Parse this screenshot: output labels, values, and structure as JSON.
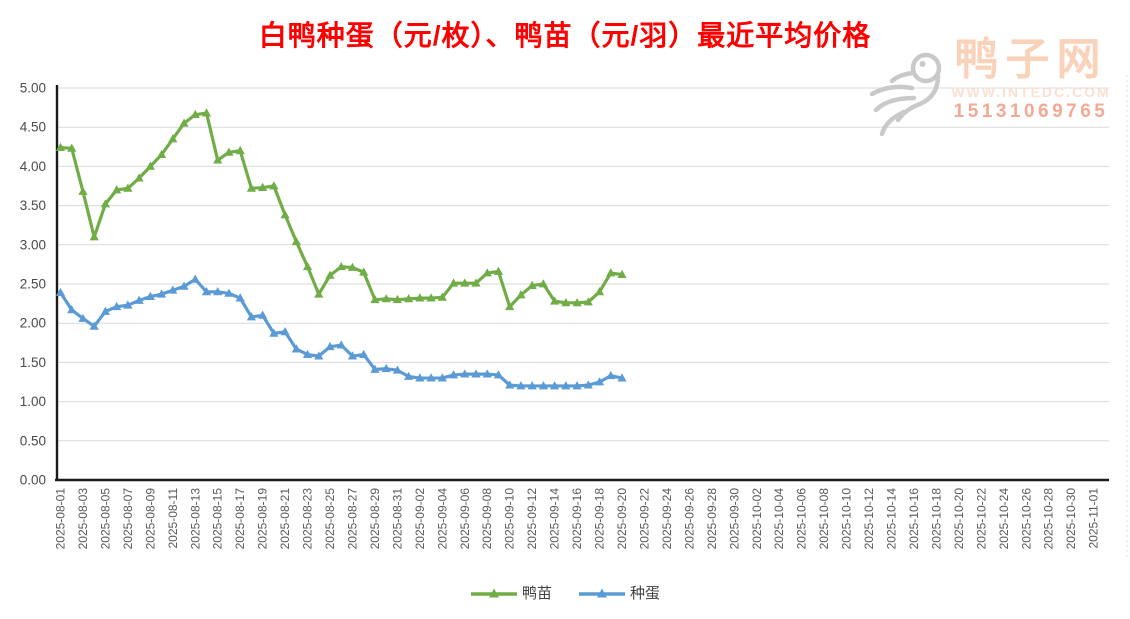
{
  "title": "白鸭种蛋（元/枚）、鸭苗（元/羽）最近平均价格",
  "watermark": {
    "logo": "duck-logo-icon",
    "brand": "鸭子网",
    "url": "WWW.INTEDC.COM",
    "phone": "15131069765",
    "brand_color": "#fad2ba",
    "phone_color": "#f3a995"
  },
  "chart_data": {
    "type": "line",
    "title": "白鸭种蛋（元/枚）、鸭苗（元/羽）最近平均价格",
    "xlabel": "",
    "ylabel": "",
    "ylim": [
      0,
      5
    ],
    "ytick_step": 0.5,
    "grid": true,
    "legend_position": "bottom",
    "marker": "triangle-up",
    "y_tick_labels": [
      "0.00",
      "0.50",
      "1.00",
      "1.50",
      "2.00",
      "2.50",
      "3.00",
      "3.50",
      "4.00",
      "4.50",
      "5.00"
    ],
    "x_tick_labels": [
      "2025-08-01",
      "2025-08-03",
      "2025-08-05",
      "2025-08-07",
      "2025-08-09",
      "2025-08-11",
      "2025-08-13",
      "2025-08-15",
      "2025-08-17",
      "2025-08-19",
      "2025-08-21",
      "2025-08-23",
      "2025-08-25",
      "2025-08-27",
      "2025-08-29",
      "2025-08-31",
      "2025-09-02",
      "2025-09-04",
      "2025-09-06",
      "2025-09-08",
      "2025-09-10",
      "2025-09-12",
      "2025-09-14",
      "2025-09-16",
      "2025-09-18",
      "2025-09-20",
      "2025-09-22",
      "2025-09-24",
      "2025-09-26",
      "2025-09-28",
      "2025-09-30",
      "2025-10-02",
      "2025-10-04",
      "2025-10-06",
      "2025-10-08",
      "2025-10-10",
      "2025-10-12",
      "2025-10-14",
      "2025-10-16",
      "2025-10-18",
      "2025-10-20",
      "2025-10-22",
      "2025-10-24",
      "2025-10-26",
      "2025-10-28",
      "2025-10-30",
      "2025-11-01"
    ],
    "x_dates": [
      "2025-08-01",
      "2025-08-02",
      "2025-08-03",
      "2025-08-04",
      "2025-08-05",
      "2025-08-06",
      "2025-08-07",
      "2025-08-08",
      "2025-08-09",
      "2025-08-10",
      "2025-08-11",
      "2025-08-12",
      "2025-08-13",
      "2025-08-14",
      "2025-08-15",
      "2025-08-16",
      "2025-08-17",
      "2025-08-18",
      "2025-08-19",
      "2025-08-20",
      "2025-08-21",
      "2025-08-22",
      "2025-08-23",
      "2025-08-24",
      "2025-08-25",
      "2025-08-26",
      "2025-08-27",
      "2025-08-28",
      "2025-08-29",
      "2025-08-30",
      "2025-08-31",
      "2025-09-01",
      "2025-09-02",
      "2025-09-03",
      "2025-09-04",
      "2025-09-05",
      "2025-09-06",
      "2025-09-07",
      "2025-09-08",
      "2025-09-09",
      "2025-09-10",
      "2025-09-11",
      "2025-09-12",
      "2025-09-13",
      "2025-09-14",
      "2025-09-15",
      "2025-09-16",
      "2025-09-17",
      "2025-09-18",
      "2025-09-19",
      "2025-09-20"
    ],
    "series": [
      {
        "name": "鸭苗",
        "color": "#70AD47",
        "values": [
          4.24,
          4.23,
          3.68,
          3.1,
          3.52,
          3.7,
          3.72,
          3.85,
          4.0,
          4.15,
          4.35,
          4.55,
          4.66,
          4.68,
          4.08,
          4.18,
          4.2,
          3.72,
          3.73,
          3.75,
          3.38,
          3.04,
          2.72,
          2.37,
          2.61,
          2.72,
          2.71,
          2.65,
          2.3,
          2.31,
          2.3,
          2.31,
          2.32,
          2.32,
          2.33,
          2.51,
          2.51,
          2.51,
          2.64,
          2.66,
          2.21,
          2.36,
          2.48,
          2.5,
          2.28,
          2.26,
          2.26,
          2.27,
          2.4,
          2.64,
          2.62
        ]
      },
      {
        "name": "种蛋",
        "color": "#5B9BD5",
        "values": [
          2.39,
          2.17,
          2.06,
          1.96,
          2.15,
          2.21,
          2.23,
          2.29,
          2.34,
          2.37,
          2.42,
          2.47,
          2.56,
          2.4,
          2.4,
          2.38,
          2.32,
          2.08,
          2.1,
          1.87,
          1.89,
          1.67,
          1.6,
          1.58,
          1.7,
          1.72,
          1.58,
          1.6,
          1.41,
          1.42,
          1.4,
          1.32,
          1.3,
          1.3,
          1.3,
          1.34,
          1.35,
          1.35,
          1.35,
          1.34,
          1.21,
          1.2,
          1.2,
          1.2,
          1.2,
          1.2,
          1.2,
          1.21,
          1.25,
          1.33,
          1.3
        ]
      }
    ],
    "colors": {
      "grid": "#D9D9D9",
      "axis": "#1a1a1a",
      "tick_text": "#595959"
    }
  }
}
